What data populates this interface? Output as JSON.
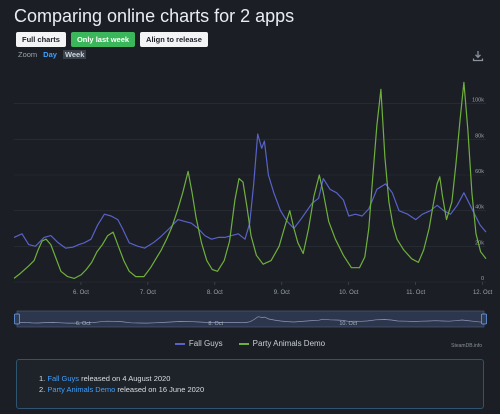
{
  "page": {
    "title": "Comparing online charts for 2 apps"
  },
  "toolbar": {
    "full_charts_label": "Full charts",
    "last_week_label": "Only last week",
    "align_label": "Align to release"
  },
  "zoom": {
    "label": "Zoom",
    "day": "Day",
    "week": "Week"
  },
  "credit": "SteamDB.info",
  "notes": [
    {
      "num": "1.",
      "app": "Fall Guys",
      "text": "released on 4 August 2020"
    },
    {
      "num": "2.",
      "app": "Party Animals Demo",
      "text": "released on 16 June 2020"
    }
  ],
  "colors": {
    "fall_guys": "#5862c8",
    "party_animals": "#6fb03c",
    "accent": "#3bb65b"
  },
  "chart_data": {
    "type": "line",
    "x_unit": "date",
    "xlim": [
      "2020-10-05",
      "2020-10-12"
    ],
    "x_tick_labels": [
      "6. Oct",
      "7. Oct",
      "8. Oct",
      "9. Oct",
      "10. Oct",
      "11. Oct",
      "12. Oct"
    ],
    "x_ticks": [
      1,
      2,
      3,
      4,
      5,
      6,
      7
    ],
    "ylim": [
      0,
      120000
    ],
    "y_tick_labels": [
      "0",
      "20k",
      "40k",
      "60k",
      "80k",
      "100k"
    ],
    "y_ticks": [
      0,
      20000,
      40000,
      60000,
      80000,
      100000
    ],
    "navigator_labels": [
      "6. Oct",
      "8. Oct",
      "10. Oct"
    ],
    "navigator_ticks": [
      1,
      3,
      5
    ],
    "series": [
      {
        "name": "Fall Guys",
        "points": [
          [
            0.0,
            25000
          ],
          [
            0.12,
            27000
          ],
          [
            0.22,
            21000
          ],
          [
            0.32,
            20000
          ],
          [
            0.45,
            25000
          ],
          [
            0.55,
            26000
          ],
          [
            0.66,
            22000
          ],
          [
            0.77,
            19000
          ],
          [
            0.88,
            19500
          ],
          [
            0.97,
            21000
          ],
          [
            1.05,
            22000
          ],
          [
            1.15,
            24000
          ],
          [
            1.25,
            32000
          ],
          [
            1.35,
            38000
          ],
          [
            1.45,
            37000
          ],
          [
            1.55,
            35000
          ],
          [
            1.62,
            30000
          ],
          [
            1.72,
            22000
          ],
          [
            1.85,
            20000
          ],
          [
            1.95,
            19000
          ],
          [
            2.08,
            22000
          ],
          [
            2.18,
            25000
          ],
          [
            2.32,
            30000
          ],
          [
            2.45,
            35000
          ],
          [
            2.55,
            34000
          ],
          [
            2.65,
            33000
          ],
          [
            2.75,
            30000
          ],
          [
            2.85,
            26000
          ],
          [
            2.95,
            24000
          ],
          [
            3.05,
            25000
          ],
          [
            3.15,
            25000
          ],
          [
            3.25,
            26000
          ],
          [
            3.35,
            27000
          ],
          [
            3.45,
            24000
          ],
          [
            3.52,
            33000
          ],
          [
            3.58,
            55000
          ],
          [
            3.64,
            83000
          ],
          [
            3.7,
            75000
          ],
          [
            3.74,
            79000
          ],
          [
            3.8,
            60000
          ],
          [
            3.88,
            50000
          ],
          [
            3.98,
            40000
          ],
          [
            4.08,
            34000
          ],
          [
            4.18,
            30000
          ],
          [
            4.3,
            36000
          ],
          [
            4.45,
            44000
          ],
          [
            4.55,
            47000
          ],
          [
            4.62,
            58000
          ],
          [
            4.72,
            52000
          ],
          [
            4.82,
            50000
          ],
          [
            4.92,
            46000
          ],
          [
            5.0,
            37000
          ],
          [
            5.1,
            38000
          ],
          [
            5.2,
            37000
          ],
          [
            5.3,
            41000
          ],
          [
            5.42,
            52000
          ],
          [
            5.55,
            55000
          ],
          [
            5.65,
            50000
          ],
          [
            5.75,
            40000
          ],
          [
            5.88,
            38000
          ],
          [
            6.0,
            35000
          ],
          [
            6.1,
            38000
          ],
          [
            6.22,
            40000
          ],
          [
            6.32,
            43000
          ],
          [
            6.42,
            40000
          ],
          [
            6.52,
            38000
          ],
          [
            6.62,
            43000
          ],
          [
            6.72,
            50000
          ],
          [
            6.8,
            44000
          ],
          [
            6.88,
            38000
          ],
          [
            6.96,
            32000
          ],
          [
            7.05,
            28000
          ]
        ]
      },
      {
        "name": "Party Animals Demo",
        "points": [
          [
            0.0,
            2000
          ],
          [
            0.1,
            5000
          ],
          [
            0.22,
            9000
          ],
          [
            0.3,
            12000
          ],
          [
            0.36,
            18000
          ],
          [
            0.42,
            23000
          ],
          [
            0.48,
            24000
          ],
          [
            0.55,
            21000
          ],
          [
            0.62,
            14000
          ],
          [
            0.7,
            6000
          ],
          [
            0.8,
            3000
          ],
          [
            0.9,
            2000
          ],
          [
            1.0,
            4000
          ],
          [
            1.08,
            7000
          ],
          [
            1.16,
            11000
          ],
          [
            1.24,
            17000
          ],
          [
            1.32,
            21000
          ],
          [
            1.4,
            26000
          ],
          [
            1.48,
            28000
          ],
          [
            1.56,
            20000
          ],
          [
            1.64,
            12000
          ],
          [
            1.72,
            6000
          ],
          [
            1.82,
            3000
          ],
          [
            1.94,
            3000
          ],
          [
            2.04,
            8000
          ],
          [
            2.12,
            13000
          ],
          [
            2.2,
            18000
          ],
          [
            2.28,
            24000
          ],
          [
            2.36,
            31000
          ],
          [
            2.44,
            40000
          ],
          [
            2.52,
            50000
          ],
          [
            2.6,
            62000
          ],
          [
            2.66,
            50000
          ],
          [
            2.72,
            36000
          ],
          [
            2.8,
            22000
          ],
          [
            2.88,
            12000
          ],
          [
            2.96,
            7000
          ],
          [
            3.04,
            6000
          ],
          [
            3.14,
            12000
          ],
          [
            3.22,
            23000
          ],
          [
            3.3,
            46000
          ],
          [
            3.36,
            58000
          ],
          [
            3.42,
            56000
          ],
          [
            3.48,
            42000
          ],
          [
            3.54,
            26000
          ],
          [
            3.62,
            15000
          ],
          [
            3.72,
            10000
          ],
          [
            3.84,
            12000
          ],
          [
            3.96,
            20000
          ],
          [
            4.06,
            33000
          ],
          [
            4.12,
            40000
          ],
          [
            4.18,
            30000
          ],
          [
            4.24,
            22000
          ],
          [
            4.32,
            16000
          ],
          [
            4.4,
            30000
          ],
          [
            4.48,
            48000
          ],
          [
            4.56,
            60000
          ],
          [
            4.62,
            50000
          ],
          [
            4.7,
            34000
          ],
          [
            4.8,
            24000
          ],
          [
            4.92,
            15000
          ],
          [
            5.04,
            8000
          ],
          [
            5.16,
            8000
          ],
          [
            5.24,
            14000
          ],
          [
            5.3,
            30000
          ],
          [
            5.36,
            60000
          ],
          [
            5.42,
            88000
          ],
          [
            5.48,
            108000
          ],
          [
            5.54,
            70000
          ],
          [
            5.6,
            45000
          ],
          [
            5.66,
            32000
          ],
          [
            5.72,
            24000
          ],
          [
            5.82,
            18000
          ],
          [
            5.94,
            13000
          ],
          [
            6.04,
            11000
          ],
          [
            6.12,
            18000
          ],
          [
            6.2,
            30000
          ],
          [
            6.26,
            43000
          ],
          [
            6.32,
            55000
          ],
          [
            6.36,
            59000
          ],
          [
            6.4,
            48000
          ],
          [
            6.46,
            35000
          ],
          [
            6.54,
            45000
          ],
          [
            6.6,
            66000
          ],
          [
            6.66,
            90000
          ],
          [
            6.72,
            112000
          ],
          [
            6.78,
            85000
          ],
          [
            6.84,
            50000
          ],
          [
            6.9,
            27000
          ],
          [
            6.97,
            17000
          ],
          [
            7.05,
            13000
          ]
        ]
      }
    ]
  }
}
